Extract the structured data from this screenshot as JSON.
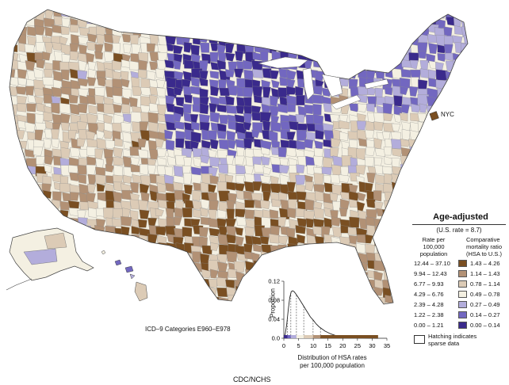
{
  "map": {
    "nyc_label": "NYC",
    "icd_label": "ICD–9 Categories E960–E978",
    "source_label": "CDC/NCHS"
  },
  "legend": {
    "title": "Age-adjusted",
    "subtitle": "(U.S. rate = 8.7)",
    "rate_header_1": "Rate per",
    "rate_header_2": "100,000",
    "rate_header_3": "population",
    "ratio_header_1": "Comparative",
    "ratio_header_2": "mortality ratio",
    "ratio_header_3": "(HSA to U.S.)",
    "rows": [
      {
        "rate": "12.44 – 37.10",
        "ratio": "1.43 – 4.26",
        "color": "#7a4f22"
      },
      {
        "rate": "9.94 – 12.43",
        "ratio": "1.14 – 1.43",
        "color": "#b29175"
      },
      {
        "rate": "6.77 – 9.93",
        "ratio": "0.78 – 1.14",
        "color": "#dccbb6"
      },
      {
        "rate": "4.29 – 6.76",
        "ratio": "0.49 – 0.78",
        "color": "#f4f0e2"
      },
      {
        "rate": "2.39 – 4.28",
        "ratio": "0.27 – 0.49",
        "color": "#b3addb"
      },
      {
        "rate": "1.22 – 2.38",
        "ratio": "0.14 – 0.27",
        "color": "#7267c0"
      },
      {
        "rate": "0.00 – 1.21",
        "ratio": "0.00 – 0.14",
        "color": "#3a2a8c"
      }
    ],
    "hatch_line_1": "Hatching indicates",
    "hatch_line_2": "sparse data"
  },
  "chart_data": {
    "type": "area",
    "title": "",
    "ylabel": "Proportion",
    "xlabel_line_1": "Distribution of HSA rates",
    "xlabel_line_2": "per 100,000 population",
    "x_ticks": [
      "0",
      "5",
      "10",
      "15",
      "20",
      "25",
      "30",
      "35"
    ],
    "y_ticks": [
      "0.0",
      "0.04",
      "0.08",
      "0.12"
    ],
    "xlim": [
      0,
      35
    ],
    "ylim": [
      0,
      0.12
    ],
    "x": [
      0,
      0.5,
      1,
      1.5,
      2,
      2.5,
      3,
      3.5,
      4,
      5,
      6,
      7,
      8,
      9,
      10,
      11,
      12,
      14,
      16,
      18,
      20,
      25,
      30,
      32
    ],
    "y": [
      0.0,
      0.01,
      0.03,
      0.06,
      0.085,
      0.098,
      0.1,
      0.098,
      0.094,
      0.085,
      0.075,
      0.065,
      0.055,
      0.045,
      0.038,
      0.03,
      0.024,
      0.015,
      0.009,
      0.005,
      0.003,
      0.001,
      0.0003,
      0.0
    ],
    "class_breaks": [
      1.21,
      2.38,
      4.28,
      6.76,
      9.93,
      12.43
    ]
  }
}
